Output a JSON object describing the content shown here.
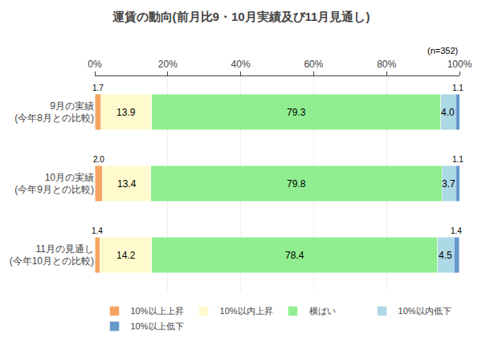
{
  "chart_data": {
    "type": "bar",
    "orientation": "horizontal",
    "stacked": true,
    "title": "運賃の動向(前月比9・10月実績及び11月見通し)",
    "annotations": [
      "(n=352)"
    ],
    "categories": [
      "9月の実績\n(今年8月との比較)",
      "10月の実績\n(今年9月との比較)",
      "11月の見通し\n(今年10月との比較)"
    ],
    "series": [
      {
        "name": "10%以上上昇",
        "color": "#F4A460",
        "values": [
          1.7,
          2.0,
          1.4
        ],
        "value_labels": [
          "1.7",
          "2.0",
          "1.4"
        ]
      },
      {
        "name": "10%以内上昇",
        "color": "#FFFACD",
        "values": [
          13.9,
          13.4,
          14.2
        ],
        "value_labels": [
          "13.9",
          "13.4",
          "14.2"
        ]
      },
      {
        "name": "横ばい",
        "color": "#90EE90",
        "values": [
          79.3,
          79.8,
          78.4
        ],
        "value_labels": [
          "79.3",
          "79.8",
          "78.4"
        ]
      },
      {
        "name": "10%以内低下",
        "color": "#ADD8E6",
        "values": [
          4.0,
          3.7,
          4.5
        ],
        "value_labels": [
          "4.0",
          "3.7",
          "4.5"
        ]
      },
      {
        "name": "10%以上低下",
        "color": "#6699CC",
        "values": [
          1.1,
          1.1,
          1.4
        ],
        "value_labels": [
          "1.1",
          "1.1",
          "1.4"
        ]
      }
    ],
    "xlim": [
      0,
      100
    ],
    "xticks": [
      {
        "value": 0,
        "label": "0%"
      },
      {
        "value": 20,
        "label": "20%"
      },
      {
        "value": 40,
        "label": "40%"
      },
      {
        "value": 60,
        "label": "60%"
      },
      {
        "value": 80,
        "label": "80%"
      },
      {
        "value": 100,
        "label": "100%"
      }
    ],
    "grid": true,
    "legend": "bottom",
    "data_labels": true
  }
}
